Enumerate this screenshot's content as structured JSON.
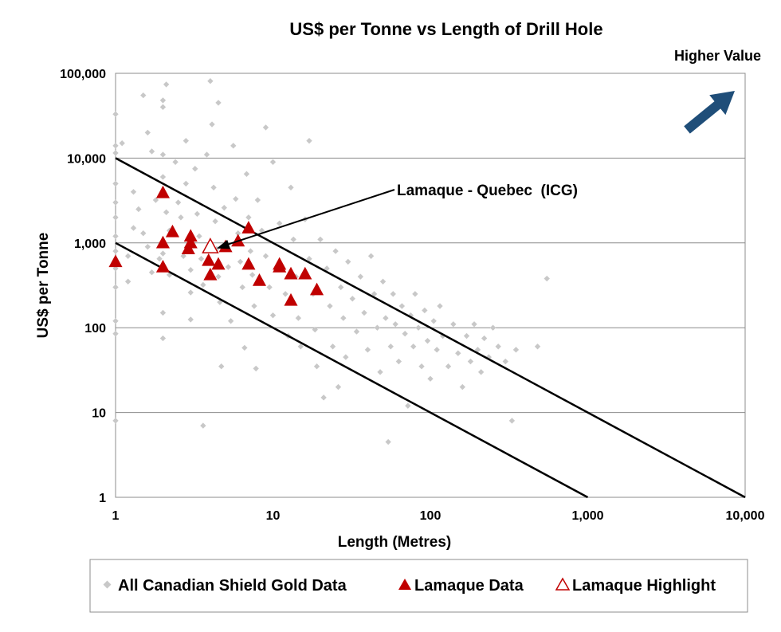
{
  "chart_data": {
    "type": "scatter",
    "title": "US$ per Tonne vs Length of Drill Hole",
    "xlabel": "Length (Metres)",
    "ylabel": "US$ per Tonne",
    "xscale": "log",
    "yscale": "log",
    "xlim": [
      1,
      10000
    ],
    "ylim": [
      1,
      100000
    ],
    "x_ticks": [
      "1",
      "10",
      "100",
      "1,000",
      "10,000"
    ],
    "y_ticks": [
      "1",
      "10",
      "100",
      "1,000",
      "10,000",
      "100,000"
    ],
    "grid": "horizontal",
    "legend_position": "bottom",
    "corner_label": "Higher Value",
    "annotation": {
      "text": "Lamaque - Quebec  (ICG)",
      "x": 4,
      "y": 900
    },
    "reference_lines": [
      {
        "points": [
          [
            1,
            10000
          ],
          [
            10000,
            1
          ]
        ]
      },
      {
        "points": [
          [
            1,
            1000
          ],
          [
            1000,
            1
          ]
        ]
      }
    ],
    "colors": {
      "canadian": "#c8c8c8",
      "lamaque": "#c00000",
      "highlight_stroke": "#c00000",
      "arrow": "#1f4e79",
      "grid": "#8c8c8c"
    },
    "series": [
      {
        "name": "All Canadian Shield Gold Data",
        "marker": "diamond",
        "points": [
          [
            1,
            33000
          ],
          [
            1,
            14000
          ],
          [
            1,
            11500
          ],
          [
            1,
            5000
          ],
          [
            1,
            3000
          ],
          [
            1,
            2000
          ],
          [
            1,
            1200
          ],
          [
            1,
            800
          ],
          [
            1,
            500
          ],
          [
            1,
            300
          ],
          [
            1,
            120
          ],
          [
            1,
            85
          ],
          [
            1,
            8
          ],
          [
            1.1,
            15000
          ],
          [
            1.2,
            700
          ],
          [
            1.2,
            350
          ],
          [
            1.3,
            4000
          ],
          [
            1.3,
            1500
          ],
          [
            1.4,
            2500
          ],
          [
            1.5,
            55000
          ],
          [
            1.5,
            1300
          ],
          [
            1.6,
            900
          ],
          [
            1.6,
            20000
          ],
          [
            1.7,
            12000
          ],
          [
            1.7,
            450
          ],
          [
            1.8,
            3200
          ],
          [
            1.9,
            650
          ],
          [
            2,
            48000
          ],
          [
            2,
            40000
          ],
          [
            2.1,
            74000
          ],
          [
            2,
            11000
          ],
          [
            2,
            6000
          ],
          [
            2.1,
            2300
          ],
          [
            2.2,
            1400
          ],
          [
            2,
            750
          ],
          [
            2.2,
            420
          ],
          [
            2,
            150
          ],
          [
            2,
            75
          ],
          [
            2.4,
            9000
          ],
          [
            2.5,
            3000
          ],
          [
            2.6,
            2000
          ],
          [
            2.7,
            700
          ],
          [
            2.8,
            16000
          ],
          [
            2.8,
            5000
          ],
          [
            2.9,
            1100
          ],
          [
            3,
            480
          ],
          [
            3,
            260
          ],
          [
            3,
            125
          ],
          [
            3.2,
            7500
          ],
          [
            3.3,
            2200
          ],
          [
            3.4,
            1200
          ],
          [
            3.5,
            650
          ],
          [
            3.6,
            320
          ],
          [
            3.6,
            7
          ],
          [
            3.8,
            11000
          ],
          [
            4,
            81000
          ],
          [
            4.1,
            25000
          ],
          [
            4.2,
            4500
          ],
          [
            4.3,
            1800
          ],
          [
            4.4,
            850
          ],
          [
            4.5,
            45000
          ],
          [
            4.5,
            400
          ],
          [
            4.6,
            200
          ],
          [
            4.7,
            35
          ],
          [
            4.9,
            2600
          ],
          [
            5,
            950
          ],
          [
            5.2,
            520
          ],
          [
            5.4,
            120
          ],
          [
            5.6,
            14000
          ],
          [
            5.8,
            3300
          ],
          [
            6,
            1300
          ],
          [
            6.2,
            600
          ],
          [
            6.4,
            300
          ],
          [
            6.6,
            58
          ],
          [
            6.8,
            6500
          ],
          [
            7,
            2000
          ],
          [
            7.2,
            800
          ],
          [
            7.4,
            420
          ],
          [
            7.6,
            180
          ],
          [
            7.8,
            33
          ],
          [
            8,
            3200
          ],
          [
            8.5,
            1400
          ],
          [
            9,
            23000
          ],
          [
            9,
            700
          ],
          [
            9.5,
            300
          ],
          [
            10,
            140
          ],
          [
            10,
            9000
          ],
          [
            11,
            1700
          ],
          [
            11.5,
            500
          ],
          [
            12,
            250
          ],
          [
            12.5,
            80
          ],
          [
            13,
            4500
          ],
          [
            13.5,
            1100
          ],
          [
            14,
            400
          ],
          [
            14.5,
            130
          ],
          [
            15,
            60
          ],
          [
            16,
            1900
          ],
          [
            17,
            16000
          ],
          [
            17,
            650
          ],
          [
            18,
            250
          ],
          [
            18.5,
            95
          ],
          [
            19,
            35
          ],
          [
            20,
            1100
          ],
          [
            21,
            15
          ],
          [
            22,
            500
          ],
          [
            23,
            180
          ],
          [
            24,
            60
          ],
          [
            25,
            800
          ],
          [
            26,
            20
          ],
          [
            27,
            300
          ],
          [
            28,
            130
          ],
          [
            29,
            45
          ],
          [
            30,
            600
          ],
          [
            32,
            220
          ],
          [
            34,
            90
          ],
          [
            36,
            400
          ],
          [
            38,
            150
          ],
          [
            40,
            55
          ],
          [
            42,
            700
          ],
          [
            44,
            250
          ],
          [
            46,
            100
          ],
          [
            48,
            30
          ],
          [
            50,
            350
          ],
          [
            52,
            130
          ],
          [
            54,
            4.5
          ],
          [
            56,
            60
          ],
          [
            58,
            250
          ],
          [
            60,
            110
          ],
          [
            63,
            40
          ],
          [
            66,
            180
          ],
          [
            69,
            85
          ],
          [
            72,
            12
          ],
          [
            75,
            140
          ],
          [
            78,
            60
          ],
          [
            80,
            250
          ],
          [
            84,
            100
          ],
          [
            88,
            35
          ],
          [
            92,
            160
          ],
          [
            96,
            70
          ],
          [
            100,
            25
          ],
          [
            105,
            120
          ],
          [
            110,
            55
          ],
          [
            115,
            180
          ],
          [
            120,
            80
          ],
          [
            130,
            35
          ],
          [
            140,
            110
          ],
          [
            150,
            50
          ],
          [
            160,
            20
          ],
          [
            170,
            80
          ],
          [
            180,
            40
          ],
          [
            190,
            110
          ],
          [
            200,
            55
          ],
          [
            210,
            30
          ],
          [
            220,
            75
          ],
          [
            235,
            45
          ],
          [
            250,
            100
          ],
          [
            270,
            60
          ],
          [
            300,
            40
          ],
          [
            330,
            8
          ],
          [
            350,
            55
          ],
          [
            480,
            60
          ],
          [
            550,
            380
          ]
        ]
      },
      {
        "name": "Lamaque Data",
        "marker": "triangle-filled",
        "points": [
          [
            1,
            600
          ],
          [
            2,
            3900
          ],
          [
            2,
            1000
          ],
          [
            2,
            520
          ],
          [
            2.3,
            1350
          ],
          [
            2.9,
            850
          ],
          [
            3,
            1200
          ],
          [
            3,
            1000
          ],
          [
            3.9,
            620
          ],
          [
            4,
            420
          ],
          [
            4.5,
            560
          ],
          [
            5,
            900
          ],
          [
            6,
            1050
          ],
          [
            7,
            1500
          ],
          [
            7,
            560
          ],
          [
            8.2,
            360
          ],
          [
            11,
            520
          ],
          [
            11,
            560
          ],
          [
            13,
            430
          ],
          [
            13,
            210
          ],
          [
            16,
            430
          ],
          [
            19,
            280
          ]
        ]
      },
      {
        "name": "Lamaque Highlight",
        "marker": "triangle-open",
        "points": [
          [
            4,
            900
          ]
        ]
      }
    ]
  }
}
